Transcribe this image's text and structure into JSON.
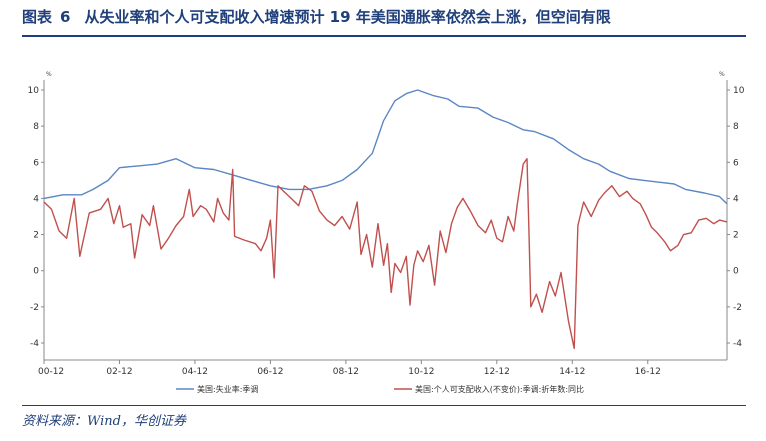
{
  "figure": {
    "label": "图表",
    "number": "6",
    "title": "从失业率和个人可支配收入增速预计 19 年美国通胀率依然会上涨，但空间有限",
    "source": "资料来源：Wind，华创证券"
  },
  "chart_data": {
    "type": "line",
    "title": "",
    "xlabel": "",
    "ylabel": "%",
    "ylabel_right": "%",
    "ylim": [
      -4,
      10
    ],
    "yticks": [
      -4,
      -2,
      0,
      2,
      4,
      6,
      8,
      10
    ],
    "xlim": [
      2000.0,
      2018.1
    ],
    "xtick_labels": [
      "00-12",
      "02-12",
      "04-12",
      "06-12",
      "08-12",
      "10-12",
      "12-12",
      "14-12",
      "16-12"
    ],
    "xtick_values": [
      2000.0,
      2002.0,
      2004.0,
      2006.0,
      2008.0,
      2010.0,
      2012.0,
      2014.0,
      2016.0
    ],
    "grid": false,
    "legend_position": "bottom",
    "series": [
      {
        "name": "美国:失业率:季调",
        "color": "#5b86c5",
        "points": [
          [
            2000.0,
            4.0
          ],
          [
            2000.5,
            4.2
          ],
          [
            2001.0,
            4.2
          ],
          [
            2001.3,
            4.5
          ],
          [
            2001.7,
            5.0
          ],
          [
            2002.0,
            5.7
          ],
          [
            2002.5,
            5.8
          ],
          [
            2003.0,
            5.9
          ],
          [
            2003.5,
            6.2
          ],
          [
            2004.0,
            5.7
          ],
          [
            2004.5,
            5.6
          ],
          [
            2005.0,
            5.3
          ],
          [
            2005.5,
            5.0
          ],
          [
            2006.0,
            4.7
          ],
          [
            2006.5,
            4.5
          ],
          [
            2007.0,
            4.5
          ],
          [
            2007.5,
            4.7
          ],
          [
            2007.9,
            5.0
          ],
          [
            2008.3,
            5.6
          ],
          [
            2008.7,
            6.5
          ],
          [
            2009.0,
            8.3
          ],
          [
            2009.3,
            9.4
          ],
          [
            2009.6,
            9.8
          ],
          [
            2009.9,
            10.0
          ],
          [
            2010.3,
            9.7
          ],
          [
            2010.7,
            9.5
          ],
          [
            2011.0,
            9.1
          ],
          [
            2011.5,
            9.0
          ],
          [
            2011.9,
            8.5
          ],
          [
            2012.3,
            8.2
          ],
          [
            2012.7,
            7.8
          ],
          [
            2013.0,
            7.7
          ],
          [
            2013.5,
            7.3
          ],
          [
            2013.9,
            6.7
          ],
          [
            2014.3,
            6.2
          ],
          [
            2014.7,
            5.9
          ],
          [
            2015.0,
            5.5
          ],
          [
            2015.5,
            5.1
          ],
          [
            2015.9,
            5.0
          ],
          [
            2016.3,
            4.9
          ],
          [
            2016.7,
            4.8
          ],
          [
            2017.0,
            4.5
          ],
          [
            2017.5,
            4.3
          ],
          [
            2017.9,
            4.1
          ],
          [
            2018.1,
            3.7
          ]
        ]
      },
      {
        "name": "美国:个人可支配收入(不变价):季调:折年数:同比",
        "color": "#c0504d",
        "points": [
          [
            2000.0,
            3.8
          ],
          [
            2000.2,
            3.4
          ],
          [
            2000.4,
            2.2
          ],
          [
            2000.6,
            1.8
          ],
          [
            2000.8,
            4.0
          ],
          [
            2000.95,
            0.8
          ],
          [
            2001.2,
            3.2
          ],
          [
            2001.5,
            3.4
          ],
          [
            2001.7,
            4.0
          ],
          [
            2001.85,
            2.6
          ],
          [
            2002.0,
            3.6
          ],
          [
            2002.1,
            2.4
          ],
          [
            2002.3,
            2.6
          ],
          [
            2002.4,
            0.7
          ],
          [
            2002.6,
            3.1
          ],
          [
            2002.8,
            2.5
          ],
          [
            2002.9,
            3.6
          ],
          [
            2003.1,
            1.2
          ],
          [
            2003.3,
            1.8
          ],
          [
            2003.5,
            2.5
          ],
          [
            2003.7,
            3.0
          ],
          [
            2003.85,
            4.5
          ],
          [
            2003.95,
            3.0
          ],
          [
            2004.15,
            3.6
          ],
          [
            2004.3,
            3.4
          ],
          [
            2004.5,
            2.7
          ],
          [
            2004.6,
            4.0
          ],
          [
            2004.75,
            3.2
          ],
          [
            2004.9,
            2.8
          ],
          [
            2005.0,
            5.6
          ],
          [
            2005.05,
            1.9
          ],
          [
            2005.3,
            1.7
          ],
          [
            2005.6,
            1.5
          ],
          [
            2005.75,
            1.1
          ],
          [
            2005.9,
            1.8
          ],
          [
            2006.0,
            2.8
          ],
          [
            2006.1,
            -0.4
          ],
          [
            2006.2,
            4.7
          ],
          [
            2006.35,
            4.4
          ],
          [
            2006.55,
            4.0
          ],
          [
            2006.75,
            3.6
          ],
          [
            2006.9,
            4.7
          ],
          [
            2007.1,
            4.4
          ],
          [
            2007.3,
            3.3
          ],
          [
            2007.5,
            2.8
          ],
          [
            2007.7,
            2.5
          ],
          [
            2007.9,
            3.0
          ],
          [
            2008.1,
            2.3
          ],
          [
            2008.3,
            3.8
          ],
          [
            2008.4,
            0.9
          ],
          [
            2008.55,
            2.0
          ],
          [
            2008.7,
            0.2
          ],
          [
            2008.85,
            2.6
          ],
          [
            2009.0,
            0.3
          ],
          [
            2009.1,
            1.5
          ],
          [
            2009.2,
            -1.2
          ],
          [
            2009.3,
            0.4
          ],
          [
            2009.45,
            -0.1
          ],
          [
            2009.6,
            0.8
          ],
          [
            2009.7,
            -1.9
          ],
          [
            2009.8,
            0.3
          ],
          [
            2009.9,
            1.1
          ],
          [
            2010.05,
            0.5
          ],
          [
            2010.2,
            1.4
          ],
          [
            2010.35,
            -0.8
          ],
          [
            2010.5,
            2.2
          ],
          [
            2010.65,
            1.0
          ],
          [
            2010.8,
            2.6
          ],
          [
            2010.95,
            3.5
          ],
          [
            2011.1,
            4.0
          ],
          [
            2011.3,
            3.3
          ],
          [
            2011.5,
            2.5
          ],
          [
            2011.7,
            2.1
          ],
          [
            2011.85,
            2.8
          ],
          [
            2012.0,
            1.8
          ],
          [
            2012.15,
            1.6
          ],
          [
            2012.3,
            3.0
          ],
          [
            2012.45,
            2.2
          ],
          [
            2012.55,
            3.8
          ],
          [
            2012.7,
            5.9
          ],
          [
            2012.8,
            6.2
          ],
          [
            2012.85,
            2.3
          ],
          [
            2012.9,
            -2.0
          ],
          [
            2013.05,
            -1.3
          ],
          [
            2013.2,
            -2.3
          ],
          [
            2013.4,
            -0.6
          ],
          [
            2013.55,
            -1.4
          ],
          [
            2013.7,
            -0.1
          ],
          [
            2013.9,
            -2.8
          ],
          [
            2014.05,
            -4.3
          ],
          [
            2014.15,
            2.5
          ],
          [
            2014.3,
            3.8
          ],
          [
            2014.5,
            3.0
          ],
          [
            2014.7,
            3.9
          ],
          [
            2014.85,
            4.3
          ],
          [
            2015.05,
            4.7
          ],
          [
            2015.25,
            4.1
          ],
          [
            2015.45,
            4.4
          ],
          [
            2015.6,
            4.0
          ],
          [
            2015.8,
            3.7
          ],
          [
            2015.95,
            3.1
          ],
          [
            2016.1,
            2.4
          ],
          [
            2016.25,
            2.1
          ],
          [
            2016.45,
            1.6
          ],
          [
            2016.6,
            1.1
          ],
          [
            2016.8,
            1.4
          ],
          [
            2016.95,
            2.0
          ],
          [
            2017.15,
            2.1
          ],
          [
            2017.35,
            2.8
          ],
          [
            2017.55,
            2.9
          ],
          [
            2017.75,
            2.6
          ],
          [
            2017.9,
            2.8
          ],
          [
            2018.1,
            2.7
          ]
        ]
      }
    ]
  }
}
